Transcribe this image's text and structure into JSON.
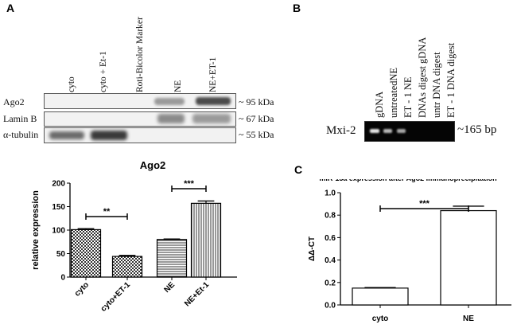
{
  "panels": {
    "a": "A",
    "b": "B",
    "c": "C"
  },
  "blotA": {
    "lanes": [
      "cyto",
      "cyto + Et-1",
      "Roti-Bicolor Marker",
      "NE",
      "NE+ET-1"
    ],
    "rows": [
      {
        "label": "Ago2",
        "size": "~ 95 kDa"
      },
      {
        "label": "Lamin B",
        "size": "~ 67 kDa"
      },
      {
        "label": "α-tubulin",
        "size": "~ 55 kDa"
      }
    ]
  },
  "blotB": {
    "lanes": [
      "gDNA",
      "untreatedNE",
      "ET - 1 NE",
      "DNAs digest gDNA",
      "untr DNA digest",
      "ET - 1 DNA digest"
    ],
    "row_label": "Mxi-2",
    "size": "~165 bp"
  },
  "chart_data": [
    {
      "type": "bar",
      "title": "Ago2",
      "ylabel": "relative expression",
      "xlabel": "",
      "categories": [
        "cyto",
        "cyto+ET-1",
        "NE",
        "NE+Et-1"
      ],
      "values": [
        101,
        44,
        80,
        157
      ],
      "errors": [
        2,
        2,
        1,
        5
      ],
      "ylim": [
        0,
        200
      ],
      "yticks": [
        "0",
        "50",
        "100",
        "150",
        "200"
      ],
      "annotations": [
        {
          "from": "cyto",
          "to": "cyto+ET-1",
          "text": "**"
        },
        {
          "from": "NE",
          "to": "NE+Et-1",
          "text": "***"
        }
      ]
    },
    {
      "type": "bar",
      "title": "miR-15a expression after Ago2 immunoprecipitation",
      "ylabel": "ΔΔ-CT",
      "xlabel": "",
      "categories": [
        "cyto",
        "NE"
      ],
      "values": [
        0.15,
        0.84
      ],
      "errors": [
        0.005,
        0.04
      ],
      "ylim": [
        0,
        1.0
      ],
      "yticks": [
        "0.0",
        "0.2",
        "0.4",
        "0.6",
        "0.8",
        "1.0"
      ],
      "annotations": [
        {
          "from": "cyto",
          "to": "NE",
          "text": "***"
        }
      ]
    }
  ]
}
